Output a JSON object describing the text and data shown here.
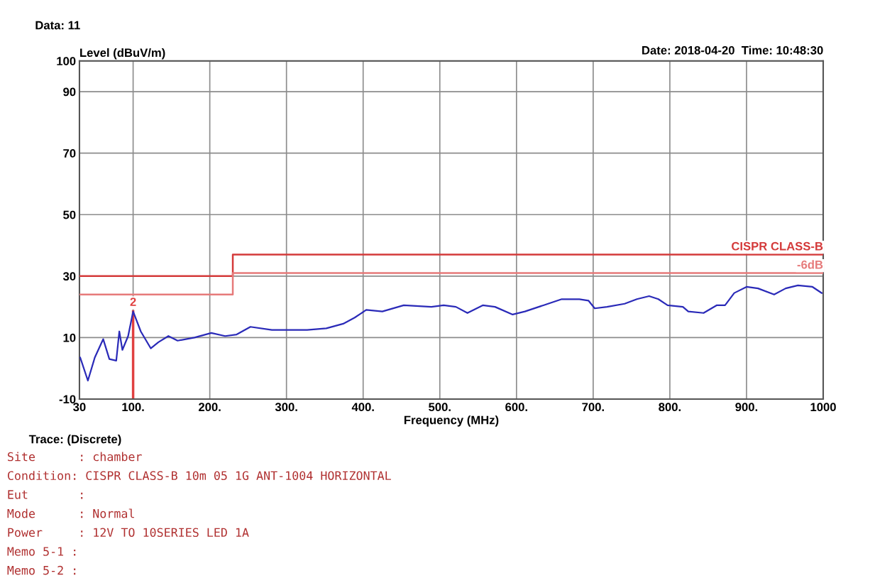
{
  "chart_data": {
    "type": "line",
    "xlabel": "Frequency (MHz)",
    "ylabel": "Level (dBuV/m)",
    "xlim": [
      30,
      1000
    ],
    "ylim": [
      -10,
      100
    ],
    "xticks": [
      30,
      {
        "value": 100,
        "label": "100."
      },
      {
        "value": 200,
        "label": "200."
      },
      {
        "value": 300,
        "label": "300."
      },
      {
        "value": 400,
        "label": "400."
      },
      {
        "value": 500,
        "label": "500."
      },
      {
        "value": 600,
        "label": "600."
      },
      {
        "value": 700,
        "label": "700."
      },
      {
        "value": 800,
        "label": "800."
      },
      {
        "value": 900,
        "label": "900."
      },
      1000
    ],
    "yticks": [
      -10,
      10,
      30,
      50,
      70,
      90,
      100
    ],
    "grid": true,
    "legend": false,
    "series": [
      {
        "name": "CISPR CLASS-B",
        "color": "#d43a3a",
        "x": [
          30,
          230,
          230,
          1000
        ],
        "values": [
          30,
          30,
          37,
          37
        ]
      },
      {
        "name": "-6dB",
        "color": "#e67a7a",
        "x": [
          30,
          230,
          230,
          1000
        ],
        "values": [
          24,
          24,
          31,
          31
        ]
      },
      {
        "color": "#2a2ab8",
        "x": [
          31,
          41,
          50,
          61,
          69,
          78,
          82,
          86,
          93.5,
          100,
          110,
          123,
          133,
          146,
          158,
          180,
          202,
          220,
          235,
          253,
          281,
          306,
          327,
          352,
          374,
          389,
          404,
          425,
          453,
          489,
          505,
          521,
          536,
          556,
          572,
          595,
          611,
          635,
          659,
          682,
          694,
          702,
          718,
          741,
          757,
          773,
          785,
          797,
          817,
          824,
          844,
          861,
          872,
          884,
          900,
          915,
          936,
          951,
          967,
          986,
          998
        ],
        "values": [
          3.5,
          -4,
          3.5,
          9.5,
          3,
          2.5,
          12,
          6,
          10.5,
          18.5,
          12,
          6.5,
          8.5,
          10.5,
          9,
          10,
          11.5,
          10.5,
          11,
          13.5,
          12.5,
          12.5,
          12.5,
          13,
          14.5,
          16.5,
          19,
          18.5,
          20.5,
          20,
          20.5,
          20,
          18,
          20.5,
          20,
          17.5,
          18.5,
          20.5,
          22.5,
          22.5,
          22,
          19.5,
          20,
          21,
          22.5,
          23.5,
          22.5,
          20.5,
          20,
          18.5,
          18,
          20.5,
          20.5,
          24.5,
          26.5,
          26,
          24,
          26,
          27,
          26.5,
          24.5
        ]
      }
    ],
    "annotations": [
      {
        "text": "2",
        "x": 100,
        "y": 18.5
      },
      "Data: 11",
      "Date: 2018-04-20  Time: 10:48:30",
      "Trace: (Discrete)",
      "Site      : chamber",
      "Condition: CISPR CLASS-B 10m 05 1G ANT-1004 HORIZONTAL",
      "Eut       :",
      "Mode      : Normal",
      "Power     : 12V TO 10SERIES LED 1A",
      "Memo 5-1 :",
      "Memo 5-2 :"
    ]
  }
}
